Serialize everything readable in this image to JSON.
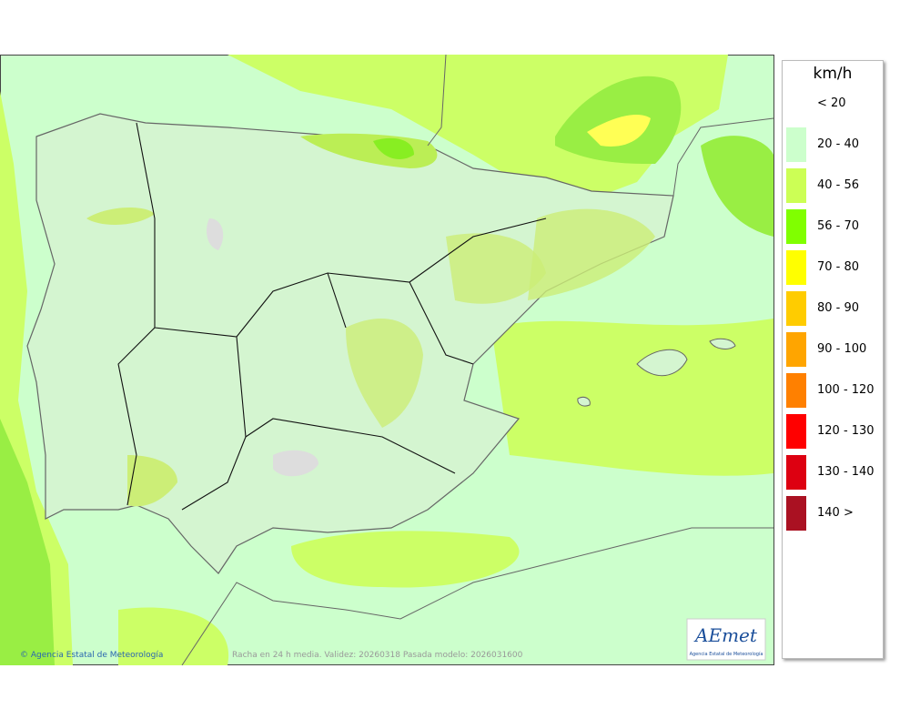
{
  "legend": {
    "unit": "km/h",
    "items": [
      {
        "label": "< 20",
        "color": "#ffffff"
      },
      {
        "label": "20 - 40",
        "color": "#ccffcc"
      },
      {
        "label": "40 - 56",
        "color": "#ccff55"
      },
      {
        "label": "56 - 70",
        "color": "#80ff00"
      },
      {
        "label": "70 - 80",
        "color": "#ffff00"
      },
      {
        "label": "80 - 90",
        "color": "#ffcc00"
      },
      {
        "label": "90 - 100",
        "color": "#ffa500"
      },
      {
        "label": "100 - 120",
        "color": "#ff8000"
      },
      {
        "label": "120 - 130",
        "color": "#ff0000"
      },
      {
        "label": "130 - 140",
        "color": "#dd0011"
      },
      {
        "label": "140 >",
        "color": "#aa1122"
      }
    ]
  },
  "footer": {
    "credit": "© Agencia Estatal de Meteorología",
    "caption": "Racha en 24 h media. Validez: 20260318 Pasada modelo: 2026031600"
  },
  "logo": {
    "name": "AEmet",
    "subtitle": "Agencia Estatal de Meteorología"
  }
}
